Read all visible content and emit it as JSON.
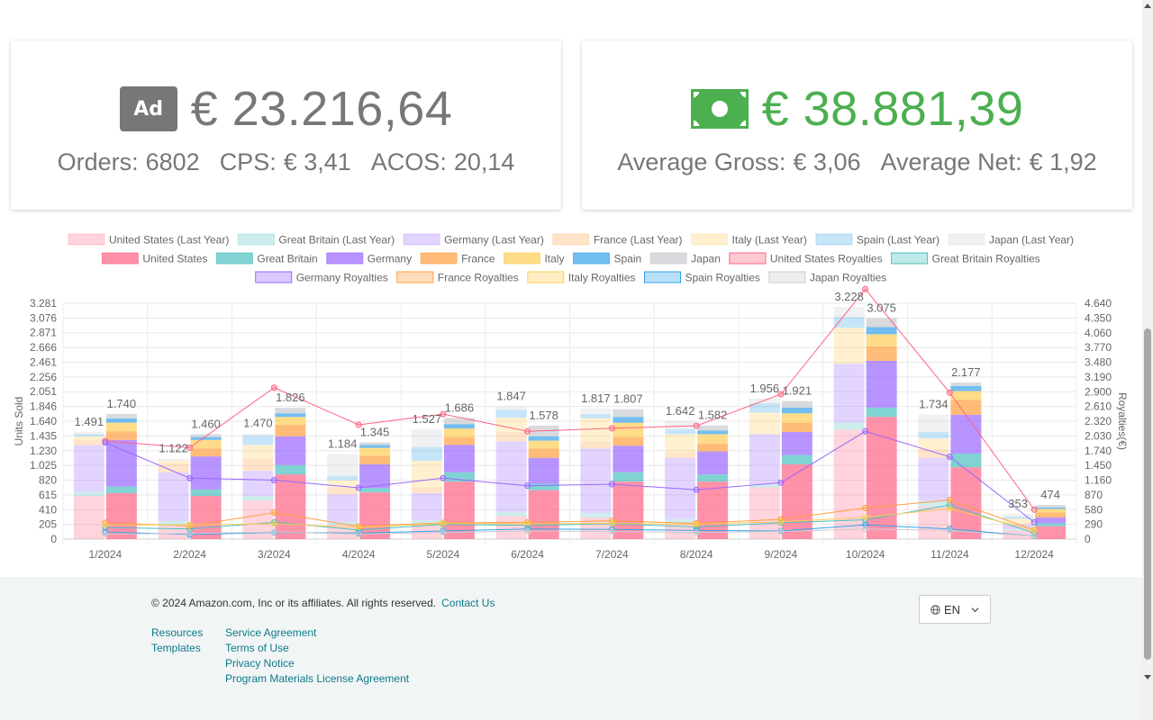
{
  "ads_card": {
    "icon": "ad-icon",
    "icon_label": "Ad",
    "amount": "€ 23.216,64",
    "orders_label": "Orders:",
    "orders_value": "6802",
    "cps_label": "CPS:",
    "cps_value": "€ 3,41",
    "acos_label": "ACOS:",
    "acos_value": "20,14"
  },
  "royalty_card": {
    "icon": "money-icon",
    "amount": "€ 38.881,39",
    "avg_gross_label": "Average Gross:",
    "avg_gross_value": "€ 3,06",
    "avg_net_label": "Average Net:",
    "avg_net_value": "€ 1,92"
  },
  "chart_data": {
    "type": "bar",
    "categories": [
      "1/2024",
      "2/2024",
      "3/2024",
      "4/2024",
      "5/2024",
      "6/2024",
      "7/2024",
      "8/2024",
      "9/2024",
      "10/2024",
      "11/2024",
      "12/2024"
    ],
    "ylabel": "Units Sold",
    "y2label": "Royalties(€)",
    "y_ticks": [
      0,
      205,
      410,
      615,
      820,
      1025,
      1230,
      1435,
      1640,
      1846,
      2051,
      2256,
      2461,
      2666,
      2871,
      3076,
      3281
    ],
    "y2_ticks": [
      0,
      290,
      580,
      870,
      1160,
      1450,
      1740,
      2030,
      2320,
      2610,
      2900,
      3190,
      3480,
      3770,
      4060,
      4350,
      4640
    ],
    "ylim": [
      0,
      3281
    ],
    "y2lim": [
      0,
      4640
    ],
    "legend_position": "top",
    "grid": true,
    "colors": {
      "us": "#ff6384",
      "gb": "#4bc0c0",
      "de": "#9966ff",
      "fr": "#ff9f40",
      "it": "#ffcd56",
      "es": "#36a2eb",
      "jp": "#c9cbcf"
    },
    "stacked_bar_groups": [
      {
        "stack": "last_year",
        "series": [
          {
            "name": "United States (Last Year)",
            "color_key": "us",
            "values": [
              600,
              180,
              540,
              200,
              200,
              320,
              300,
              220,
              720,
              1520,
              450,
              120
            ]
          },
          {
            "name": "Great Britain (Last Year)",
            "color_key": "gb",
            "values": [
              60,
              70,
              60,
              40,
              60,
              60,
              60,
              60,
              40,
              100,
              80,
              20
            ]
          },
          {
            "name": "Germany (Last Year)",
            "color_key": "de",
            "values": [
              650,
              680,
              350,
              380,
              380,
              980,
              900,
              850,
              700,
              820,
              600,
              60
            ]
          },
          {
            "name": "France (Last Year)",
            "color_key": "fr",
            "values": [
              70,
              120,
              180,
              100,
              80,
              130,
              100,
              80,
              0,
              0,
              120,
              20
            ]
          },
          {
            "name": "Italy (Last Year)",
            "color_key": "it",
            "values": [
              50,
              40,
              180,
              100,
              370,
              200,
              320,
              250,
              300,
              500,
              150,
              60
            ]
          },
          {
            "name": "Spain (Last Year)",
            "color_key": "es",
            "values": [
              31,
              0,
              130,
              60,
              190,
              110,
              60,
              70,
              130,
              150,
              90,
              30
            ]
          },
          {
            "name": "Japan (Last Year)",
            "color_key": "jp",
            "values": [
              30,
              32,
              30,
              304,
              247,
              47,
              77,
              112,
              66,
              138,
              244,
              43
            ]
          }
        ],
        "totals": [
          1491,
          1122,
          1470,
          1184,
          1527,
          1847,
          1817,
          1642,
          1956,
          3228,
          1734,
          353
        ]
      },
      {
        "stack": "this_year",
        "series": [
          {
            "name": "United States",
            "color_key": "us",
            "values": [
              640,
              600,
              900,
              650,
              800,
              680,
              800,
              800,
              1040,
              1700,
              1000,
              180
            ]
          },
          {
            "name": "Great Britain",
            "color_key": "gb",
            "values": [
              90,
              90,
              130,
              60,
              130,
              90,
              130,
              100,
              130,
              130,
              190,
              40
            ]
          },
          {
            "name": "Germany",
            "color_key": "de",
            "values": [
              650,
              460,
              400,
              330,
              380,
              360,
              370,
              320,
              320,
              650,
              540,
              80
            ]
          },
          {
            "name": "France",
            "color_key": "fr",
            "values": [
              120,
              110,
              160,
              120,
              110,
              130,
              120,
              110,
              130,
              200,
              210,
              70
            ]
          },
          {
            "name": "Italy",
            "color_key": "it",
            "values": [
              120,
              120,
              110,
              110,
              120,
              110,
              200,
              130,
              130,
              170,
              120,
              50
            ]
          },
          {
            "name": "Spain",
            "color_key": "es",
            "values": [
              60,
              40,
              50,
              40,
              60,
              60,
              80,
              50,
              80,
              100,
              70,
              20
            ]
          },
          {
            "name": "Japan",
            "color_key": "jp",
            "values": [
              60,
              40,
              76,
              35,
              86,
              148,
              107,
              72,
              91,
              125,
              47,
              34
            ]
          }
        ],
        "totals": [
          1740,
          1460,
          1826,
          1345,
          1686,
          1578,
          1807,
          1582,
          1921,
          3075,
          2177,
          474
        ]
      }
    ],
    "line_series": [
      {
        "name": "United States Royalties",
        "color_key": "us",
        "values": [
          1930,
          1800,
          2980,
          2250,
          2460,
          2120,
          2180,
          2230,
          2850,
          4920,
          2880,
          580
        ]
      },
      {
        "name": "Great Britain Royalties",
        "color_key": "gb",
        "values": [
          230,
          200,
          330,
          180,
          290,
          270,
          300,
          240,
          320,
          380,
          670,
          120
        ]
      },
      {
        "name": "Germany Royalties",
        "color_key": "de",
        "values": [
          1900,
          1200,
          1160,
          1010,
          1200,
          1050,
          1080,
          970,
          1110,
          2120,
          1620,
          330
        ]
      },
      {
        "name": "France Royalties",
        "color_key": "fr",
        "values": [
          320,
          260,
          520,
          250,
          320,
          330,
          360,
          310,
          390,
          610,
          770,
          180
        ]
      },
      {
        "name": "Italy Royalties",
        "color_key": "it",
        "values": [
          280,
          280,
          300,
          230,
          310,
          300,
          310,
          290,
          340,
          430,
          600,
          170
        ]
      },
      {
        "name": "Spain Royalties",
        "color_key": "es",
        "values": [
          140,
          90,
          130,
          120,
          160,
          200,
          190,
          170,
          160,
          280,
          200,
          60
        ]
      },
      {
        "name": "Japan Royalties",
        "color_key": "jp",
        "values": [
          100,
          110,
          140,
          100,
          130,
          160,
          150,
          130,
          150,
          200,
          170,
          60
        ]
      }
    ]
  },
  "footer": {
    "copyright": "© 2024 Amazon.com, Inc or its affiliates. All rights reserved.",
    "contact": "Contact Us",
    "col1": [
      "Resources",
      "Templates"
    ],
    "col2": [
      "Service Agreement",
      "Terms of Use",
      "Privacy Notice",
      "Program Materials License Agreement"
    ],
    "language": "EN"
  }
}
